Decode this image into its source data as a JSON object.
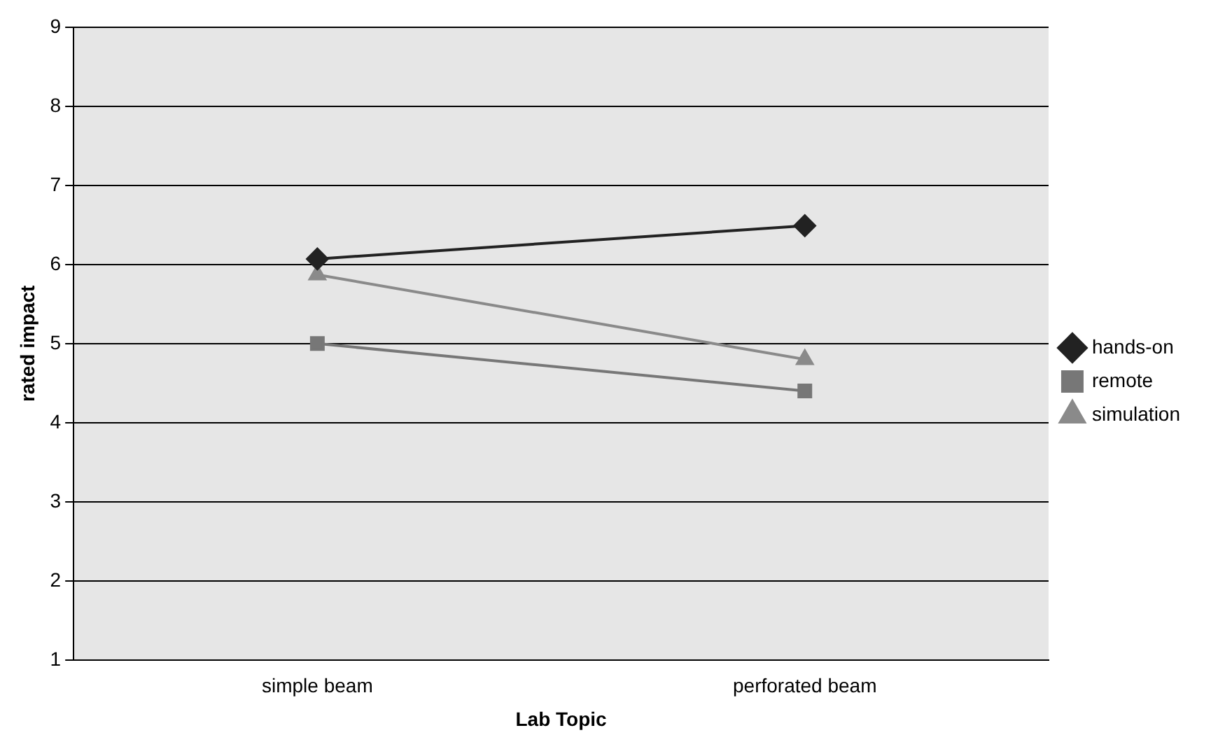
{
  "chart_data": {
    "type": "line",
    "xlabel": "Lab Topic",
    "ylabel": "rated impact",
    "categories": [
      "simple beam",
      "perforated beam"
    ],
    "series": [
      {
        "name": "hands-on",
        "color": "#222222",
        "values": [
          6.07,
          6.49
        ],
        "marker": "diamond"
      },
      {
        "name": "remote",
        "color": "#777777",
        "values": [
          5.0,
          4.4
        ],
        "marker": "square"
      },
      {
        "name": "simulation",
        "color": "#8a8a8a",
        "values": [
          5.87,
          4.8
        ],
        "marker": "triangle"
      }
    ],
    "ylim": [
      1,
      9
    ],
    "yticks": [
      1,
      2,
      3,
      4,
      5,
      6,
      7,
      8,
      9
    ],
    "grid": "y",
    "legend": "right",
    "line_style": "solid"
  }
}
